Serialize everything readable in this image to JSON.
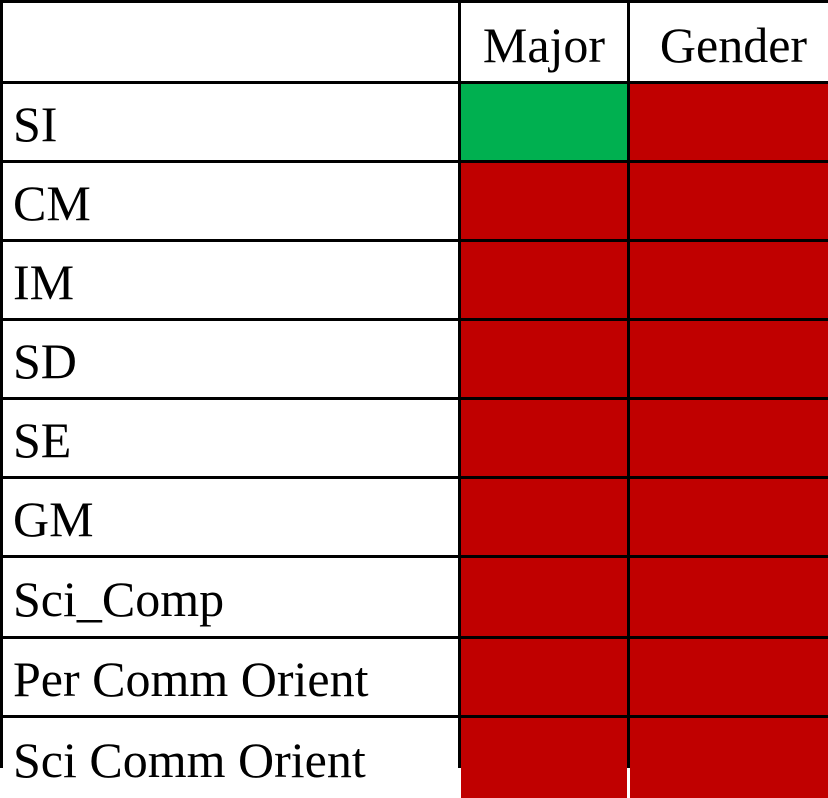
{
  "chart_data": {
    "type": "heatmap",
    "columns": [
      "Major",
      "Gender"
    ],
    "rows": [
      "SI",
      "CM",
      "IM",
      "SD",
      "SE",
      "GM",
      "Sci_Comp",
      "Per Comm Orient",
      "Sci Comm Orient"
    ],
    "values": [
      [
        "green",
        "red"
      ],
      [
        "red",
        "red"
      ],
      [
        "red",
        "red"
      ],
      [
        "red",
        "red"
      ],
      [
        "red",
        "red"
      ],
      [
        "red",
        "red"
      ],
      [
        "red",
        "red"
      ],
      [
        "red",
        "red"
      ],
      [
        "red",
        "red"
      ]
    ],
    "colors": {
      "green": "#00b050",
      "red": "#c00000"
    }
  }
}
